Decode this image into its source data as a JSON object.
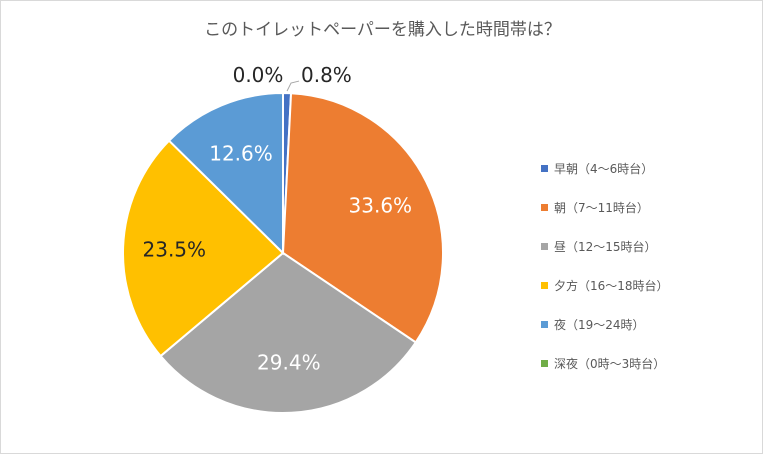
{
  "chart_data": {
    "type": "pie",
    "title": "このトイレットペーパーを購入した時間帯は？",
    "categories": [
      "早朝（4～6時台）",
      "朝（7～11時台）",
      "昼（12～15時台）",
      "夕方（16～18時台）",
      "夜（19～24時）",
      "深夜（0時～3時台）"
    ],
    "values": [
      0.8,
      33.6,
      29.4,
      23.5,
      12.6,
      0.0
    ],
    "data_labels": [
      "0.8%",
      "33.6%",
      "29.4%",
      "23.5%",
      "12.6%",
      "0.0%"
    ],
    "colors": [
      "#4472c4",
      "#ed7d31",
      "#a5a5a5",
      "#ffc000",
      "#5b9bd5",
      "#70ad47"
    ],
    "legend_position": "right"
  }
}
